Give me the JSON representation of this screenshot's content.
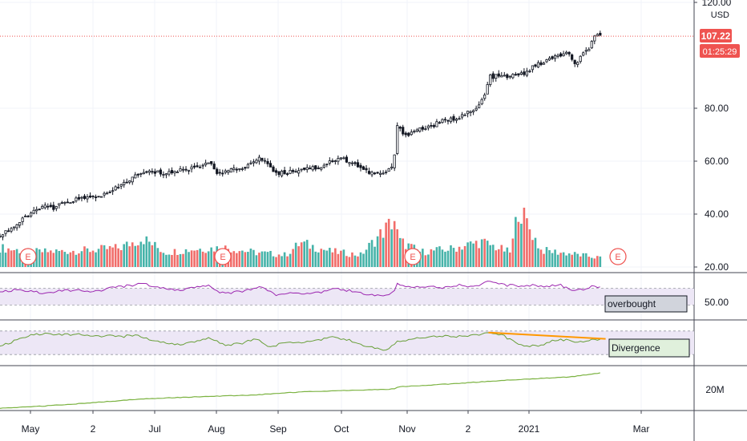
{
  "chart_data": {
    "type": "candlestick",
    "currency": "USD",
    "colors": {
      "up": "#26a69a",
      "down": "#ef5350",
      "candle": "#131722",
      "rsi": "#9c27b0",
      "osc": "#689f38",
      "obv": "#7cb342",
      "band_fill": "#ede7f6",
      "trendline": "#ff9800",
      "price_line": "#ef5350",
      "label_box_grey": "#d1d4dc",
      "label_box_green": "#e0f0dc"
    },
    "price_axis": {
      "ticks": [
        "120.00",
        "80.00",
        "60.00",
        "40.00",
        "20.00"
      ],
      "tick_values": [
        120,
        80,
        60,
        40,
        20
      ],
      "current_price": "107.22",
      "countdown": "01:25:29"
    },
    "x_labels": [
      "May",
      "2",
      "Jul",
      "Aug",
      "Sep",
      "Oct",
      "Nov",
      "2",
      "2021",
      "Mar"
    ],
    "earnings_marker": "E",
    "earnings_count": 4,
    "price_series": [
      {
        "t": 0,
        "c": 32
      },
      {
        "t": 10,
        "c": 35.5
      },
      {
        "t": 20,
        "c": 40
      },
      {
        "t": 28,
        "c": 43
      },
      {
        "t": 35,
        "c": 42
      },
      {
        "t": 42,
        "c": 44
      },
      {
        "t": 50,
        "c": 45.5
      },
      {
        "t": 58,
        "c": 46
      },
      {
        "t": 66,
        "c": 47
      },
      {
        "t": 72,
        "c": 47.5
      },
      {
        "t": 78,
        "c": 50
      },
      {
        "t": 86,
        "c": 53
      },
      {
        "t": 92,
        "c": 55
      },
      {
        "t": 100,
        "c": 56
      },
      {
        "t": 108,
        "c": 55.5
      },
      {
        "t": 116,
        "c": 56
      },
      {
        "t": 124,
        "c": 57
      },
      {
        "t": 132,
        "c": 58
      },
      {
        "t": 138,
        "c": 60
      },
      {
        "t": 144,
        "c": 56
      },
      {
        "t": 150,
        "c": 56
      },
      {
        "t": 158,
        "c": 57
      },
      {
        "t": 164,
        "c": 58
      },
      {
        "t": 170,
        "c": 60.5
      },
      {
        "t": 176,
        "c": 61
      },
      {
        "t": 182,
        "c": 56
      },
      {
        "t": 188,
        "c": 55.5
      },
      {
        "t": 196,
        "c": 56.5
      },
      {
        "t": 204,
        "c": 57.5
      },
      {
        "t": 212,
        "c": 57.5
      },
      {
        "t": 220,
        "c": 60
      },
      {
        "t": 228,
        "c": 61
      },
      {
        "t": 236,
        "c": 59
      },
      {
        "t": 244,
        "c": 56
      },
      {
        "t": 252,
        "c": 55
      },
      {
        "t": 258,
        "c": 56
      },
      {
        "t": 262,
        "c": 59
      },
      {
        "t": 264,
        "c": 73
      },
      {
        "t": 270,
        "c": 70
      },
      {
        "t": 278,
        "c": 72
      },
      {
        "t": 286,
        "c": 73
      },
      {
        "t": 294,
        "c": 75
      },
      {
        "t": 302,
        "c": 76
      },
      {
        "t": 310,
        "c": 78
      },
      {
        "t": 316,
        "c": 79
      },
      {
        "t": 322,
        "c": 84
      },
      {
        "t": 326,
        "c": 92
      },
      {
        "t": 332,
        "c": 92
      },
      {
        "t": 340,
        "c": 92
      },
      {
        "t": 348,
        "c": 93
      },
      {
        "t": 356,
        "c": 96
      },
      {
        "t": 364,
        "c": 98
      },
      {
        "t": 372,
        "c": 100
      },
      {
        "t": 378,
        "c": 101
      },
      {
        "t": 382,
        "c": 96
      },
      {
        "t": 386,
        "c": 99
      },
      {
        "t": 392,
        "c": 103
      },
      {
        "t": 396,
        "c": 107
      },
      {
        "t": 400,
        "c": 107.22
      }
    ],
    "volume_series": [
      {
        "t": 0,
        "v": 32
      },
      {
        "t": 20,
        "v": 25
      },
      {
        "t": 40,
        "v": 26
      },
      {
        "t": 60,
        "v": 28
      },
      {
        "t": 80,
        "v": 32
      },
      {
        "t": 95,
        "v": 48
      },
      {
        "t": 110,
        "v": 24
      },
      {
        "t": 130,
        "v": 30
      },
      {
        "t": 150,
        "v": 32
      },
      {
        "t": 170,
        "v": 24
      },
      {
        "t": 190,
        "v": 20
      },
      {
        "t": 200,
        "v": 40
      },
      {
        "t": 220,
        "v": 26
      },
      {
        "t": 240,
        "v": 20
      },
      {
        "t": 263,
        "v": 80
      },
      {
        "t": 265,
        "v": 44
      },
      {
        "t": 280,
        "v": 25
      },
      {
        "t": 300,
        "v": 30
      },
      {
        "t": 320,
        "v": 42
      },
      {
        "t": 340,
        "v": 24
      },
      {
        "t": 345,
        "v": 100
      },
      {
        "t": 360,
        "v": 28
      },
      {
        "t": 380,
        "v": 22
      },
      {
        "t": 400,
        "v": 15
      }
    ],
    "rsi_series": [
      {
        "t": 0,
        "v": 60
      },
      {
        "t": 10,
        "v": 66
      },
      {
        "t": 20,
        "v": 62
      },
      {
        "t": 30,
        "v": 58
      },
      {
        "t": 40,
        "v": 64
      },
      {
        "t": 50,
        "v": 66
      },
      {
        "t": 60,
        "v": 60
      },
      {
        "t": 70,
        "v": 68
      },
      {
        "t": 80,
        "v": 74
      },
      {
        "t": 90,
        "v": 78
      },
      {
        "t": 95,
        "v": 84
      },
      {
        "t": 100,
        "v": 76
      },
      {
        "t": 110,
        "v": 70
      },
      {
        "t": 120,
        "v": 66
      },
      {
        "t": 130,
        "v": 72
      },
      {
        "t": 140,
        "v": 76
      },
      {
        "t": 145,
        "v": 62
      },
      {
        "t": 155,
        "v": 60
      },
      {
        "t": 165,
        "v": 66
      },
      {
        "t": 175,
        "v": 74
      },
      {
        "t": 185,
        "v": 52
      },
      {
        "t": 195,
        "v": 60
      },
      {
        "t": 205,
        "v": 58
      },
      {
        "t": 215,
        "v": 62
      },
      {
        "t": 225,
        "v": 70
      },
      {
        "t": 235,
        "v": 62
      },
      {
        "t": 245,
        "v": 54
      },
      {
        "t": 255,
        "v": 52
      },
      {
        "t": 262,
        "v": 62
      },
      {
        "t": 264,
        "v": 80
      },
      {
        "t": 275,
        "v": 72
      },
      {
        "t": 285,
        "v": 76
      },
      {
        "t": 295,
        "v": 72
      },
      {
        "t": 305,
        "v": 78
      },
      {
        "t": 315,
        "v": 74
      },
      {
        "t": 325,
        "v": 86
      },
      {
        "t": 335,
        "v": 78
      },
      {
        "t": 345,
        "v": 76
      },
      {
        "t": 355,
        "v": 78
      },
      {
        "t": 365,
        "v": 74
      },
      {
        "t": 372,
        "v": 80
      },
      {
        "t": 380,
        "v": 64
      },
      {
        "t": 388,
        "v": 68
      },
      {
        "t": 394,
        "v": 76
      },
      {
        "t": 400,
        "v": 74
      }
    ],
    "rsi_range": [
      0,
      100
    ],
    "rsi_band": [
      30,
      70
    ],
    "rsi_ticks": [
      "50.00"
    ],
    "rsi_label": "overbought",
    "osc_series": [
      {
        "t": 0,
        "v": 40
      },
      {
        "t": 10,
        "v": 55
      },
      {
        "t": 20,
        "v": 68
      },
      {
        "t": 30,
        "v": 74
      },
      {
        "t": 40,
        "v": 70
      },
      {
        "t": 50,
        "v": 72
      },
      {
        "t": 60,
        "v": 66
      },
      {
        "t": 70,
        "v": 68
      },
      {
        "t": 80,
        "v": 65
      },
      {
        "t": 90,
        "v": 70
      },
      {
        "t": 100,
        "v": 58
      },
      {
        "t": 110,
        "v": 50
      },
      {
        "t": 120,
        "v": 46
      },
      {
        "t": 130,
        "v": 52
      },
      {
        "t": 140,
        "v": 62
      },
      {
        "t": 150,
        "v": 45
      },
      {
        "t": 160,
        "v": 48
      },
      {
        "t": 170,
        "v": 60
      },
      {
        "t": 180,
        "v": 40
      },
      {
        "t": 190,
        "v": 50
      },
      {
        "t": 200,
        "v": 52
      },
      {
        "t": 210,
        "v": 56
      },
      {
        "t": 220,
        "v": 64
      },
      {
        "t": 230,
        "v": 60
      },
      {
        "t": 240,
        "v": 44
      },
      {
        "t": 250,
        "v": 36
      },
      {
        "t": 256,
        "v": 30
      },
      {
        "t": 264,
        "v": 52
      },
      {
        "t": 275,
        "v": 60
      },
      {
        "t": 285,
        "v": 66
      },
      {
        "t": 295,
        "v": 68
      },
      {
        "t": 305,
        "v": 66
      },
      {
        "t": 315,
        "v": 70
      },
      {
        "t": 325,
        "v": 74
      },
      {
        "t": 335,
        "v": 68
      },
      {
        "t": 342,
        "v": 52
      },
      {
        "t": 350,
        "v": 42
      },
      {
        "t": 360,
        "v": 44
      },
      {
        "t": 370,
        "v": 58
      },
      {
        "t": 378,
        "v": 56
      },
      {
        "t": 384,
        "v": 50
      },
      {
        "t": 392,
        "v": 58
      },
      {
        "t": 400,
        "v": 60
      }
    ],
    "osc_range": [
      0,
      100
    ],
    "osc_band": [
      20,
      80
    ],
    "osc_label": "Divergence",
    "divergence_line": [
      {
        "t": 325,
        "v": 76
      },
      {
        "t": 403,
        "v": 60
      }
    ],
    "obv_series": [
      {
        "t": 0,
        "v": 0.5
      },
      {
        "t": 30,
        "v": 3
      },
      {
        "t": 60,
        "v": 6
      },
      {
        "t": 90,
        "v": 9.5
      },
      {
        "t": 110,
        "v": 11
      },
      {
        "t": 140,
        "v": 12.5
      },
      {
        "t": 170,
        "v": 14
      },
      {
        "t": 200,
        "v": 17
      },
      {
        "t": 230,
        "v": 18.5
      },
      {
        "t": 258,
        "v": 19.5
      },
      {
        "t": 262,
        "v": 20
      },
      {
        "t": 265,
        "v": 22
      },
      {
        "t": 300,
        "v": 25
      },
      {
        "t": 340,
        "v": 29
      },
      {
        "t": 380,
        "v": 32
      },
      {
        "t": 400,
        "v": 36
      }
    ],
    "obv_ticks": [
      "20M"
    ],
    "obv_tick_values": [
      20
    ],
    "obv_range": [
      0,
      40
    ]
  }
}
